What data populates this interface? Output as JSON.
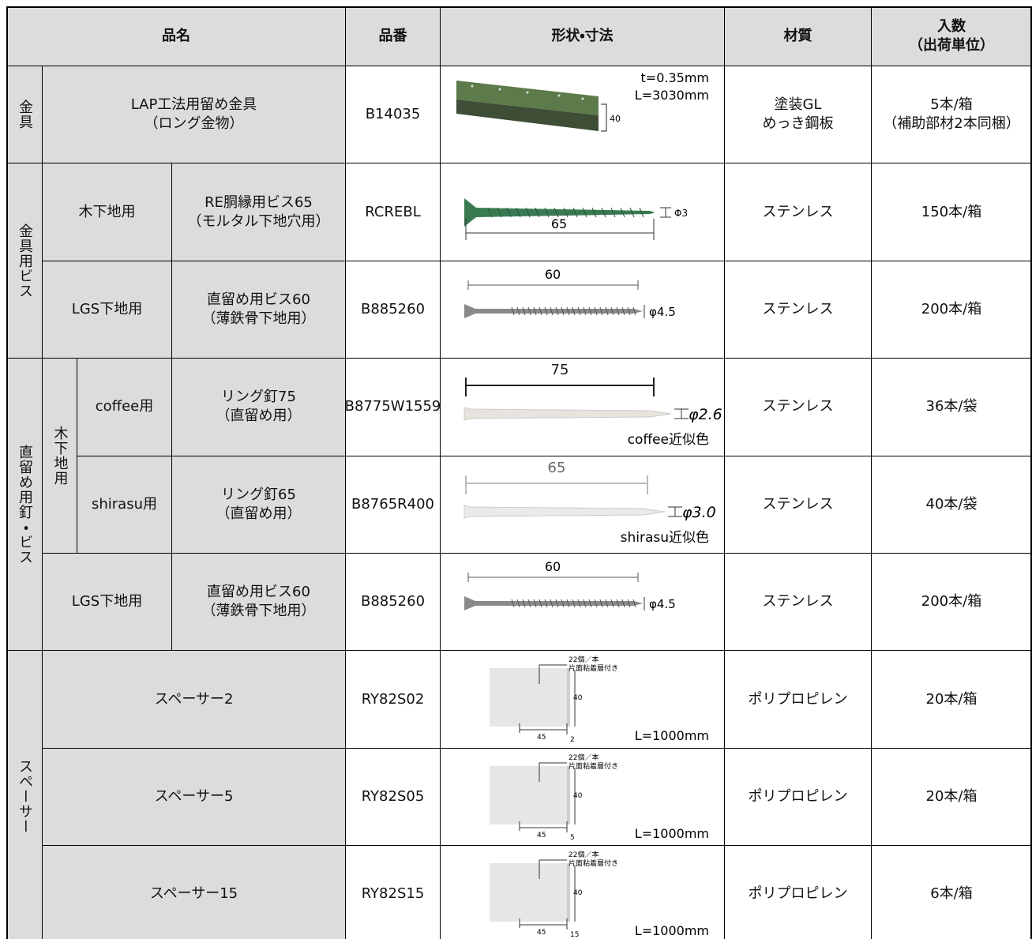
{
  "header": {
    "name": "品名",
    "code": "品番",
    "shape": "形状・寸法",
    "material": "材質",
    "quantity": [
      "入数",
      "（出荷単位）"
    ]
  },
  "groups": [
    {
      "label": "金具",
      "rows": [
        {
          "name": [
            "LAP工法用留め金具",
            "（ロング金物）"
          ],
          "code": "B14035",
          "shape": [
            "t=0.35mm",
            "L=3030mm",
            "40"
          ],
          "material": [
            "塗装GL",
            "めっき鋼板"
          ],
          "quantity": [
            "5本/箱",
            "（補助部材2本同梱）"
          ]
        }
      ]
    },
    {
      "label": "金具用ビス",
      "rows": [
        {
          "base": "木下地用",
          "name": [
            "RE胴縁用ビス65",
            "（モルタル下地穴用）"
          ],
          "code": "RCREBL",
          "shape": [
            "65",
            "Φ3"
          ],
          "material": [
            "ステンレス"
          ],
          "quantity": [
            "150本/箱"
          ]
        },
        {
          "base": "LGS下地用",
          "name": [
            "直留め用ビス60",
            "（薄鉄骨下地用）"
          ],
          "code": "B885260",
          "shape": [
            "60",
            "φ4.5"
          ],
          "material": [
            "ステンレス"
          ],
          "quantity": [
            "200本/箱"
          ]
        }
      ]
    },
    {
      "label": "直留め用釘・ビス",
      "rows": [
        {
          "group": "木下地用",
          "rows": [
            {
              "base": "coffee用",
              "name": [
                "リング釘75",
                "（直留め用）"
              ],
              "code": "B8775W1559",
              "shape": [
                "75",
                "φ2.6",
                "coffee近似色"
              ],
              "material": [
                "ステンレス"
              ],
              "quantity": [
                "36本/袋"
              ]
            },
            {
              "base": "shirasu用",
              "name": [
                "リング釘65",
                "（直留め用）"
              ],
              "code": "B8765R400",
              "shape": [
                "65",
                "φ3.0",
                "shirasu近似色"
              ],
              "material": [
                "ステンレス"
              ],
              "quantity": [
                "40本/袋"
              ]
            }
          ]
        },
        {
          "base": "LGS下地用",
          "name": [
            "直留め用ビス60",
            "（薄鉄骨下地用）"
          ],
          "code": "B885260",
          "shape": [
            "60",
            "φ4.5"
          ],
          "material": [
            "ステンレス"
          ],
          "quantity": [
            "200本/箱"
          ]
        }
      ]
    },
    {
      "label": "スペーサー",
      "rows": [
        {
          "name": [
            "スペーサー2"
          ],
          "code": "RY82S02",
          "shape": [
            "22個／本",
            "片面粘着層付き",
            "40",
            "45",
            "2",
            "L=1000mm"
          ],
          "material": [
            "ポリプロピレン"
          ],
          "quantity": [
            "20本/箱"
          ]
        },
        {
          "name": [
            "スペーサー5"
          ],
          "code": "RY82S05",
          "shape": [
            "22個／本",
            "片面粘着層付き",
            "40",
            "45",
            "5",
            "L=1000mm"
          ],
          "material": [
            "ポリプロピレン"
          ],
          "quantity": [
            "20本/箱"
          ]
        },
        {
          "name": [
            "スペーサー15"
          ],
          "code": "RY82S15",
          "shape": [
            "22個／本",
            "片面粘着層付き",
            "40",
            "45",
            "15",
            "L=1000mm"
          ],
          "material": [
            "ポリプロピレン"
          ],
          "quantity": [
            "6本/箱"
          ]
        }
      ]
    }
  ]
}
